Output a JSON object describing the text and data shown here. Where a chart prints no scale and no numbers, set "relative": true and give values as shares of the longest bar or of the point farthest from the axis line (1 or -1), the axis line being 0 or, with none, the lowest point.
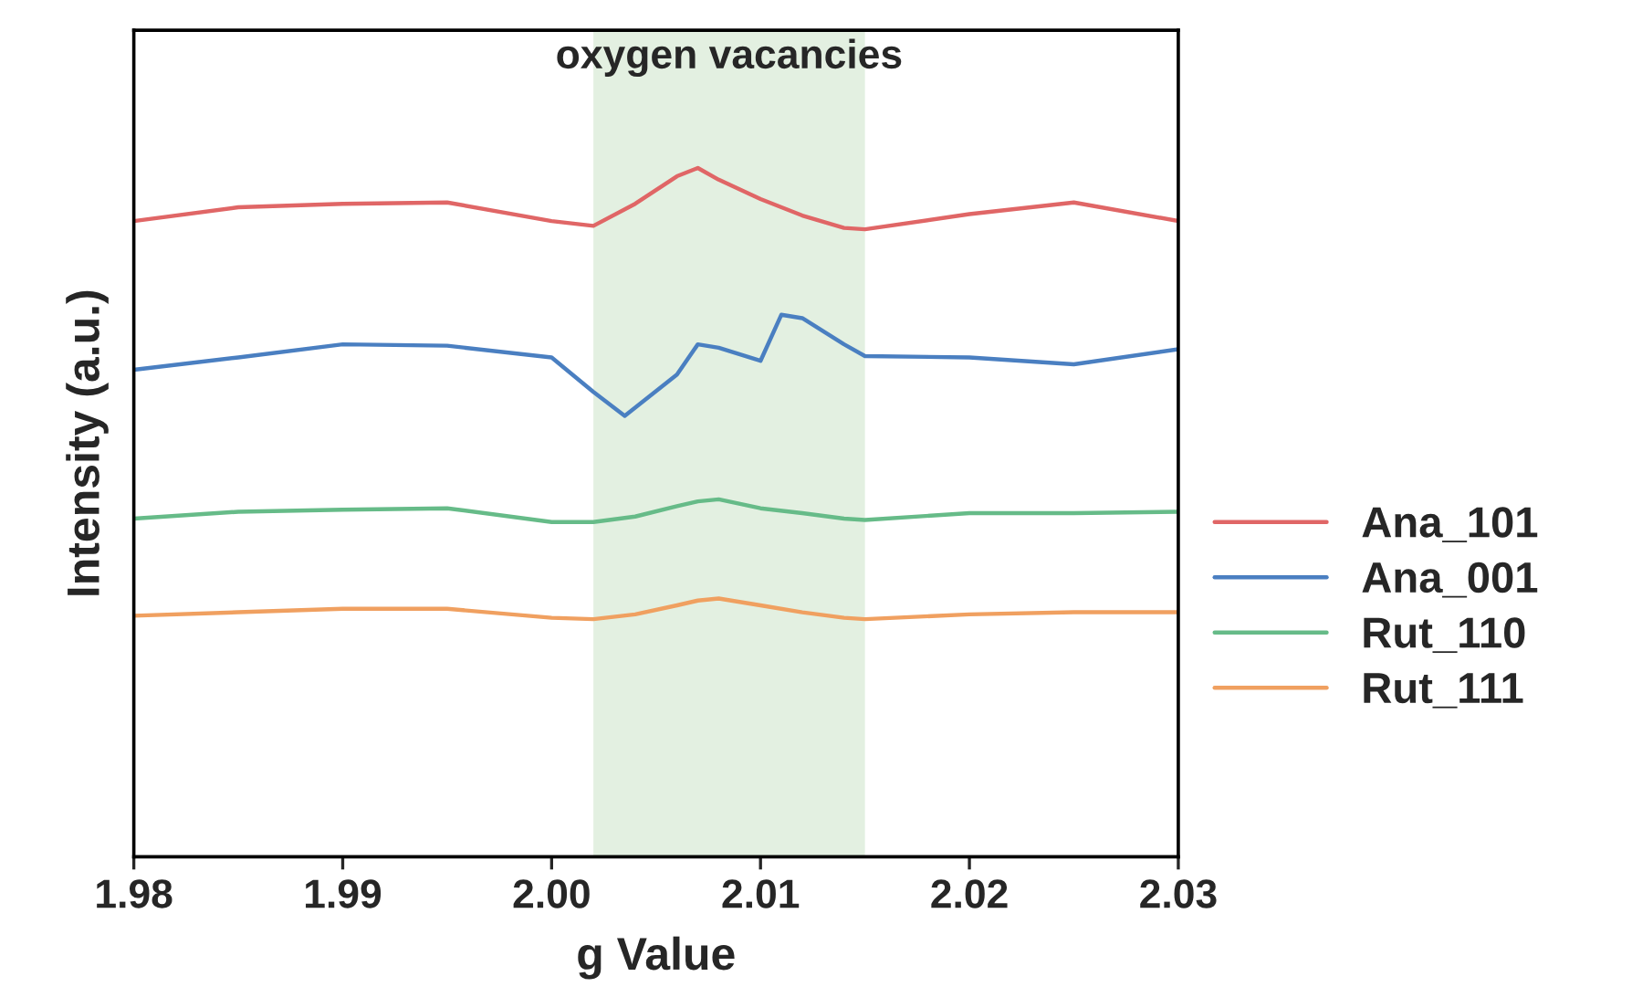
{
  "chart_data": {
    "type": "line",
    "relative": true,
    "xlabel": "g Value",
    "ylabel": "Intensity (a.u.)",
    "xlim": [
      1.98,
      2.03
    ],
    "xticks": [
      {
        "value": 1.98,
        "label": "1.98"
      },
      {
        "value": 1.99,
        "label": "1.99"
      },
      {
        "value": 2.0,
        "label": "2.00"
      },
      {
        "value": 2.01,
        "label": "2.01"
      },
      {
        "value": 2.02,
        "label": "2.02"
      },
      {
        "value": 2.03,
        "label": "2.03"
      }
    ],
    "x": [
      1.98,
      1.985,
      1.99,
      1.995,
      2.0,
      2.002,
      2.004,
      2.006,
      2.007,
      2.008,
      2.01,
      2.012,
      2.014,
      2.015,
      2.02,
      2.025,
      2.03
    ],
    "series": [
      {
        "name": "Ana_101",
        "color": "#e06666",
        "values": [
          0.923,
          0.943,
          0.948,
          0.95,
          0.923,
          0.916,
          0.948,
          0.988,
          1.0,
          0.983,
          0.955,
          0.931,
          0.913,
          0.911,
          0.933,
          0.95,
          0.923
        ]
      },
      {
        "name": "Ana_001",
        "color": "#4a7fc1",
        "x": [
          1.98,
          1.985,
          1.99,
          1.995,
          2.0,
          2.002,
          2.0035,
          2.006,
          2.007,
          2.008,
          2.01,
          2.011,
          2.012,
          2.014,
          2.015,
          2.02,
          2.025,
          2.03
        ],
        "values": [
          0.707,
          0.725,
          0.744,
          0.742,
          0.725,
          0.675,
          0.64,
          0.7,
          0.744,
          0.739,
          0.72,
          0.787,
          0.782,
          0.744,
          0.727,
          0.725,
          0.715,
          0.737
        ]
      },
      {
        "name": "Rut_110",
        "color": "#66bb88",
        "values": [
          0.491,
          0.501,
          0.504,
          0.506,
          0.486,
          0.486,
          0.494,
          0.509,
          0.516,
          0.519,
          0.506,
          0.499,
          0.491,
          0.489,
          0.499,
          0.499,
          0.501
        ]
      },
      {
        "name": "Rut_111",
        "color": "#f0a060",
        "values": [
          0.35,
          0.355,
          0.36,
          0.36,
          0.347,
          0.345,
          0.352,
          0.365,
          0.372,
          0.375,
          0.365,
          0.355,
          0.347,
          0.345,
          0.352,
          0.355,
          0.355
        ]
      }
    ],
    "bands": [
      {
        "axis": "x",
        "from": 2.002,
        "to": 2.015,
        "label": "oxygen vacancies",
        "color": "#e3f0e1"
      }
    ],
    "legend": "right",
    "grid": false
  }
}
